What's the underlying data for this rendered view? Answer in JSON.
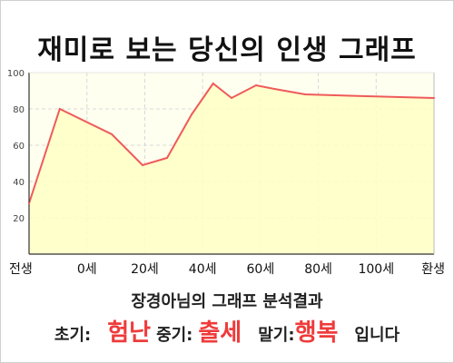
{
  "chart_data": {
    "type": "area",
    "title": "재미로 보는 당신의 인생 그래프",
    "x": [
      -10,
      0,
      17,
      27,
      35,
      43,
      50,
      56,
      64,
      70,
      80,
      100,
      122
    ],
    "y": [
      28,
      80,
      66,
      49,
      53,
      77,
      94,
      86,
      93,
      91,
      88,
      87,
      86
    ],
    "xlim": [
      -10,
      122
    ],
    "ylim": [
      0,
      100
    ],
    "y_ticks": [
      "20",
      "40",
      "60",
      "80",
      "100"
    ],
    "x_tick_labels": [
      "전생",
      "0세",
      "20세",
      "40세",
      "60세",
      "80세",
      "100세",
      "환생"
    ],
    "colors": {
      "line": "#ef5a5a",
      "fill": "#ffffc4",
      "highlight": "#ef3b3b"
    },
    "grid": true
  },
  "caption": "장경아님의 그래프 분석결과",
  "summary": {
    "early_label": "초기:",
    "early_value": "험난",
    "mid_label": "중기:",
    "mid_value": "출세",
    "late_label": "말기:",
    "late_value": "행복",
    "ending": "입니다"
  }
}
